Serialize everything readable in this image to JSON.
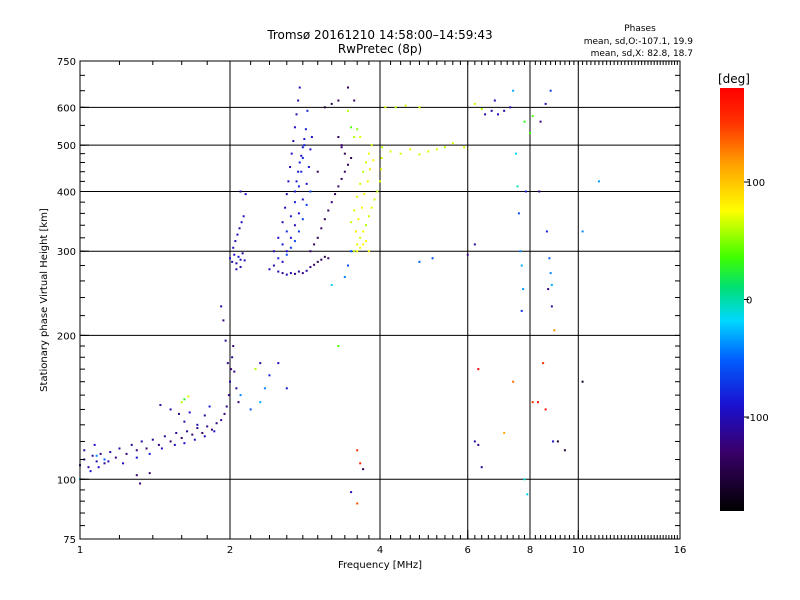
{
  "chart_data": {
    "type": "scatter",
    "title_line1": "Tromsø 20161210 14:58:00–14:59:43",
    "title_line2": "RwPretec (8p)",
    "stats": {
      "title": "Phases",
      "line_o": "mean, sd,O:-107.1, 19.9",
      "line_x": "mean, sd,X:  82.8, 18.7"
    },
    "xlabel": "Frequency [MHz]",
    "ylabel": "Stationary phase Virtual Height [km]",
    "x_scale": "log",
    "y_scale": "log",
    "xlim": [
      1,
      16
    ],
    "ylim": [
      75,
      750
    ],
    "x_ticks": [
      {
        "value": 1,
        "label": "1"
      },
      {
        "value": 2,
        "label": "2"
      },
      {
        "value": 4,
        "label": "4"
      },
      {
        "value": 6,
        "label": "6"
      },
      {
        "value": 8,
        "label": "8"
      },
      {
        "value": 10,
        "label": "10"
      },
      {
        "value": 16,
        "label": "16"
      }
    ],
    "x_grid": [
      2,
      4,
      6,
      8,
      10
    ],
    "y_ticks": [
      {
        "value": 75,
        "label": "75"
      },
      {
        "value": 100,
        "label": "100"
      },
      {
        "value": 200,
        "label": "200"
      },
      {
        "value": 300,
        "label": "300"
      },
      {
        "value": 400,
        "label": "400"
      },
      {
        "value": 500,
        "label": "500"
      },
      {
        "value": 600,
        "label": "600"
      },
      {
        "value": 750,
        "label": "750"
      }
    ],
    "y_grid": [
      100,
      200,
      300,
      400,
      500,
      600
    ],
    "colorbar": {
      "label": "[deg]",
      "range": [
        -180,
        180
      ],
      "ticks": [
        {
          "value": 100,
          "label": "100"
        },
        {
          "value": 0,
          "label": "0"
        },
        {
          "value": -100,
          "label": "-100"
        }
      ]
    },
    "points": [
      [
        1.0,
        107,
        -110
      ],
      [
        1.02,
        110,
        -105
      ],
      [
        1.04,
        106,
        -112
      ],
      [
        1.06,
        112,
        -100
      ],
      [
        1.08,
        109,
        -108
      ],
      [
        1.1,
        113,
        -120
      ],
      [
        1.12,
        108,
        -115
      ],
      [
        1.15,
        114,
        -110
      ],
      [
        1.18,
        111,
        -118
      ],
      [
        1.2,
        116,
        -105
      ],
      [
        1.24,
        113,
        -125
      ],
      [
        1.27,
        118,
        -112
      ],
      [
        1.3,
        115,
        -120
      ],
      [
        1.33,
        120,
        -108
      ],
      [
        1.36,
        116,
        -130
      ],
      [
        1.4,
        121,
        -115
      ],
      [
        1.44,
        118,
        -125
      ],
      [
        1.48,
        123,
        -110
      ],
      [
        1.52,
        120,
        -130
      ],
      [
        1.56,
        125,
        -118
      ],
      [
        1.6,
        122,
        -128
      ],
      [
        1.64,
        126,
        -112
      ],
      [
        1.68,
        124,
        -126
      ],
      [
        1.72,
        128,
        -118
      ],
      [
        1.76,
        125,
        -132
      ],
      [
        1.8,
        129,
        -115
      ],
      [
        1.84,
        127,
        -128
      ],
      [
        1.88,
        131,
        -120
      ],
      [
        1.92,
        133,
        -110
      ],
      [
        1.95,
        137,
        -125
      ],
      [
        1.97,
        142,
        -115
      ],
      [
        1.99,
        150,
        -120
      ],
      [
        2.0,
        160,
        -110
      ],
      [
        2.01,
        170,
        -125
      ],
      [
        2.02,
        180,
        -115
      ],
      [
        2.03,
        190,
        -130
      ],
      [
        2.04,
        168,
        -120
      ],
      [
        2.06,
        155,
        -112
      ],
      [
        2.08,
        145,
        -128
      ],
      [
        1.98,
        175,
        -118
      ],
      [
        1.96,
        195,
        -108
      ],
      [
        1.94,
        215,
        -122
      ],
      [
        1.92,
        230,
        -105
      ],
      [
        1.05,
        104,
        -90
      ],
      [
        1.09,
        106,
        -95
      ],
      [
        1.14,
        109,
        -100
      ],
      [
        1.22,
        108,
        -95
      ],
      [
        1.3,
        111,
        -90
      ],
      [
        1.38,
        113,
        -85
      ],
      [
        1.46,
        116,
        -95
      ],
      [
        1.55,
        118,
        -100
      ],
      [
        1.62,
        119,
        -90
      ],
      [
        1.7,
        121,
        -95
      ],
      [
        1.78,
        123,
        -100
      ],
      [
        1.86,
        126,
        -92
      ],
      [
        1.45,
        143,
        -110
      ],
      [
        1.52,
        140,
        -100
      ],
      [
        1.58,
        137,
        -115
      ],
      [
        1.62,
        132,
        -105
      ],
      [
        1.66,
        138,
        -95
      ],
      [
        1.72,
        130,
        -100
      ],
      [
        1.78,
        136,
        -110
      ],
      [
        1.82,
        142,
        -85
      ],
      [
        1.6,
        145,
        60
      ],
      [
        1.62,
        147,
        30
      ],
      [
        1.65,
        149,
        70
      ],
      [
        1.32,
        98,
        -120
      ],
      [
        1.38,
        103,
        -130
      ],
      [
        1.02,
        115,
        -110
      ],
      [
        1.07,
        118,
        -95
      ],
      [
        2.0,
        290,
        -90
      ],
      [
        2.02,
        285,
        -100
      ],
      [
        2.04,
        295,
        -95
      ],
      [
        2.06,
        283,
        -105
      ],
      [
        2.08,
        292,
        -90
      ],
      [
        2.1,
        288,
        -100
      ],
      [
        2.12,
        297,
        -110
      ],
      [
        2.14,
        287,
        -95
      ],
      [
        2.03,
        305,
        -100
      ],
      [
        2.05,
        315,
        -105
      ],
      [
        2.07,
        325,
        -95
      ],
      [
        2.09,
        335,
        -110
      ],
      [
        2.11,
        345,
        -100
      ],
      [
        2.13,
        355,
        -90
      ],
      [
        2.06,
        275,
        -100
      ],
      [
        2.1,
        278,
        -110
      ],
      [
        2.15,
        395,
        -95
      ],
      [
        2.1,
        400,
        -105
      ],
      [
        2.4,
        275,
        -100
      ],
      [
        2.45,
        280,
        -110
      ],
      [
        2.5,
        272,
        -105
      ],
      [
        2.55,
        270,
        -115
      ],
      [
        2.6,
        268,
        -100
      ],
      [
        2.65,
        270,
        -110
      ],
      [
        2.7,
        269,
        -120
      ],
      [
        2.75,
        272,
        -105
      ],
      [
        2.8,
        270,
        -115
      ],
      [
        2.85,
        273,
        -110
      ],
      [
        2.9,
        278,
        -125
      ],
      [
        2.95,
        281,
        -130
      ],
      [
        3.0,
        285,
        -140
      ],
      [
        3.05,
        288,
        -135
      ],
      [
        3.1,
        292,
        -145
      ],
      [
        3.15,
        290,
        -130
      ],
      [
        2.45,
        300,
        -100
      ],
      [
        2.5,
        320,
        -95
      ],
      [
        2.55,
        345,
        -105
      ],
      [
        2.58,
        370,
        -100
      ],
      [
        2.6,
        395,
        -110
      ],
      [
        2.62,
        420,
        -95
      ],
      [
        2.64,
        450,
        -105
      ],
      [
        2.66,
        480,
        -100
      ],
      [
        2.68,
        510,
        -110
      ],
      [
        2.7,
        545,
        -95
      ],
      [
        2.72,
        580,
        -105
      ],
      [
        2.74,
        620,
        -110
      ],
      [
        2.76,
        660,
        -100
      ],
      [
        2.5,
        290,
        -80
      ],
      [
        2.55,
        310,
        -85
      ],
      [
        2.6,
        330,
        -75
      ],
      [
        2.65,
        355,
        -85
      ],
      [
        2.7,
        380,
        -80
      ],
      [
        2.75,
        410,
        -78
      ],
      [
        2.78,
        440,
        -82
      ],
      [
        2.8,
        470,
        -76
      ],
      [
        2.82,
        500,
        -80
      ],
      [
        2.84,
        540,
        -84
      ],
      [
        2.86,
        590,
        -78
      ],
      [
        2.55,
        285,
        -95
      ],
      [
        2.6,
        300,
        -92
      ],
      [
        2.65,
        320,
        -90
      ],
      [
        2.7,
        340,
        -95
      ],
      [
        2.75,
        360,
        -92
      ],
      [
        2.8,
        385,
        -90
      ],
      [
        2.85,
        415,
        -94
      ],
      [
        2.88,
        450,
        -88
      ],
      [
        2.9,
        490,
        -92
      ],
      [
        2.92,
        520,
        -95
      ],
      [
        2.6,
        295,
        -65
      ],
      [
        2.65,
        305,
        -68
      ],
      [
        2.7,
        315,
        -62
      ],
      [
        2.75,
        330,
        -70
      ],
      [
        2.8,
        350,
        -66
      ],
      [
        2.85,
        375,
        -64
      ],
      [
        2.9,
        400,
        -66
      ],
      [
        2.7,
        400,
        -88
      ],
      [
        2.72,
        420,
        -85
      ],
      [
        2.74,
        440,
        -90
      ],
      [
        2.76,
        460,
        -87
      ],
      [
        2.78,
        475,
        -92
      ],
      [
        2.8,
        495,
        -85
      ],
      [
        2.82,
        515,
        -88
      ],
      [
        2.9,
        300,
        -130
      ],
      [
        2.95,
        310,
        -135
      ],
      [
        3.0,
        320,
        -140
      ],
      [
        3.05,
        335,
        -130
      ],
      [
        3.1,
        350,
        -140
      ],
      [
        3.15,
        365,
        -135
      ],
      [
        3.2,
        380,
        -125
      ],
      [
        3.25,
        395,
        -135
      ],
      [
        3.3,
        410,
        -130
      ],
      [
        3.35,
        425,
        -140
      ],
      [
        3.4,
        440,
        -130
      ],
      [
        3.45,
        455,
        -135
      ],
      [
        3.5,
        470,
        -140
      ],
      [
        3.4,
        480,
        -145
      ],
      [
        3.35,
        500,
        -130
      ],
      [
        3.3,
        520,
        -140
      ],
      [
        3.1,
        600,
        -150
      ],
      [
        3.2,
        610,
        -145
      ],
      [
        3.3,
        620,
        -140
      ],
      [
        3.45,
        660,
        -140
      ],
      [
        3.55,
        620,
        -130
      ],
      [
        3.35,
        495,
        -125
      ],
      [
        3.55,
        300,
        60
      ],
      [
        3.6,
        310,
        70
      ],
      [
        3.65,
        320,
        65
      ],
      [
        3.7,
        330,
        75
      ],
      [
        3.75,
        340,
        60
      ],
      [
        3.8,
        355,
        68
      ],
      [
        3.85,
        370,
        72
      ],
      [
        3.9,
        385,
        66
      ],
      [
        3.95,
        400,
        62
      ],
      [
        4.0,
        420,
        68
      ],
      [
        4.02,
        445,
        72
      ],
      [
        4.03,
        470,
        65
      ],
      [
        4.04,
        495,
        60
      ],
      [
        3.5,
        345,
        64
      ],
      [
        3.55,
        365,
        70
      ],
      [
        3.6,
        390,
        72
      ],
      [
        3.65,
        415,
        66
      ],
      [
        3.7,
        440,
        62
      ],
      [
        3.75,
        460,
        68
      ],
      [
        3.8,
        480,
        70
      ],
      [
        3.85,
        500,
        66
      ],
      [
        3.6,
        300,
        80
      ],
      [
        3.65,
        305,
        76
      ],
      [
        3.7,
        310,
        82
      ],
      [
        3.75,
        315,
        78
      ],
      [
        3.8,
        300,
        74
      ],
      [
        3.58,
        330,
        84
      ],
      [
        3.62,
        350,
        80
      ],
      [
        3.68,
        370,
        76
      ],
      [
        3.72,
        395,
        82
      ],
      [
        3.78,
        420,
        78
      ],
      [
        3.82,
        445,
        84
      ],
      [
        3.88,
        465,
        80
      ],
      [
        3.55,
        520,
        60
      ],
      [
        3.6,
        540,
        50
      ],
      [
        3.65,
        520,
        70
      ],
      [
        3.5,
        545,
        40
      ],
      [
        3.45,
        590,
        60
      ],
      [
        4.1,
        600,
        65
      ],
      [
        4.3,
        600,
        60
      ],
      [
        4.5,
        605,
        68
      ],
      [
        4.8,
        600,
        65
      ],
      [
        5.2,
        490,
        70
      ],
      [
        5.4,
        495,
        62
      ],
      [
        5.6,
        505,
        68
      ],
      [
        5.9,
        495,
        65
      ],
      [
        6.2,
        610,
        65
      ],
      [
        6.4,
        595,
        60
      ],
      [
        4.2,
        485,
        70
      ],
      [
        4.4,
        480,
        68
      ],
      [
        4.6,
        490,
        72
      ],
      [
        4.8,
        478,
        66
      ],
      [
        5.0,
        485,
        70
      ],
      [
        6.5,
        580,
        -105
      ],
      [
        6.7,
        590,
        -110
      ],
      [
        6.9,
        580,
        -100
      ],
      [
        7.1,
        590,
        -108
      ],
      [
        7.3,
        600,
        -104
      ],
      [
        6.8,
        620,
        -100
      ],
      [
        7.4,
        650,
        -30
      ],
      [
        8.0,
        530,
        35
      ],
      [
        8.1,
        575,
        40
      ],
      [
        7.8,
        560,
        30
      ],
      [
        8.4,
        560,
        -120
      ],
      [
        8.6,
        610,
        -100
      ],
      [
        8.8,
        650,
        -70
      ],
      [
        7.55,
        410,
        -5
      ],
      [
        7.6,
        360,
        -60
      ],
      [
        7.65,
        300,
        -40
      ],
      [
        7.7,
        280,
        -30
      ],
      [
        7.75,
        250,
        -35
      ],
      [
        7.7,
        225,
        -70
      ],
      [
        7.5,
        480,
        -20
      ],
      [
        7.85,
        400,
        -80
      ],
      [
        8.35,
        400,
        -120
      ],
      [
        8.65,
        330,
        -80
      ],
      [
        8.75,
        290,
        -50
      ],
      [
        8.8,
        270,
        -40
      ],
      [
        8.85,
        255,
        -30
      ],
      [
        8.85,
        230,
        -110
      ],
      [
        8.95,
        205,
        120
      ],
      [
        8.7,
        250,
        -120
      ],
      [
        8.5,
        175,
        150
      ],
      [
        8.6,
        140,
        170
      ],
      [
        8.9,
        120,
        -90
      ],
      [
        10.2,
        330,
        -40
      ],
      [
        11.0,
        420,
        -35
      ],
      [
        6.2,
        310,
        -110
      ],
      [
        6.0,
        295,
        -120
      ],
      [
        5.1,
        290,
        -60
      ],
      [
        4.8,
        285,
        -50
      ],
      [
        6.2,
        120,
        -110
      ],
      [
        6.3,
        118,
        -120
      ],
      [
        6.4,
        106,
        -110
      ],
      [
        6.3,
        170,
        190
      ],
      [
        7.1,
        125,
        110
      ],
      [
        7.4,
        160,
        130
      ],
      [
        8.1,
        145,
        150
      ],
      [
        8.3,
        145,
        170
      ],
      [
        9.1,
        120,
        -160
      ],
      [
        9.4,
        115,
        -150
      ],
      [
        10.2,
        160,
        -165
      ],
      [
        3.6,
        115,
        150
      ],
      [
        3.65,
        108,
        160
      ],
      [
        3.7,
        105,
        -140
      ],
      [
        3.6,
        89,
        140
      ],
      [
        3.5,
        94,
        -100
      ],
      [
        2.1,
        150,
        -40
      ],
      [
        2.2,
        140,
        -60
      ],
      [
        2.3,
        145,
        -30
      ],
      [
        2.35,
        155,
        -40
      ],
      [
        2.4,
        165,
        -80
      ],
      [
        2.5,
        175,
        -100
      ],
      [
        2.6,
        155,
        -90
      ],
      [
        2.3,
        175,
        -110
      ],
      [
        2.25,
        170,
        60
      ],
      [
        3.3,
        190,
        40
      ],
      [
        3.4,
        265,
        -40
      ],
      [
        3.45,
        280,
        -60
      ],
      [
        3.5,
        300,
        -55
      ],
      [
        3.2,
        255,
        -20
      ],
      [
        1.08,
        112,
        -40
      ],
      [
        1.12,
        110,
        -50
      ],
      [
        1.0,
        100,
        -20
      ],
      [
        7.8,
        100,
        -10
      ],
      [
        7.9,
        93,
        -20
      ],
      [
        1.3,
        102,
        -130
      ],
      [
        3.0,
        440,
        -140
      ]
    ]
  }
}
